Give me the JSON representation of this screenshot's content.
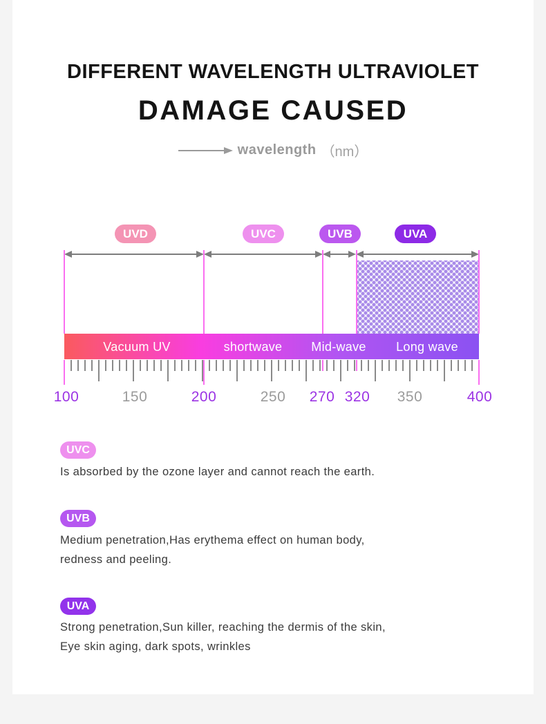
{
  "header": {
    "title_line1": "DIFFERENT WAVELENGTH ULTRAVIOLET",
    "title_line2": "DAMAGE CAUSED",
    "wavelength_label": "wavelength",
    "wavelength_unit": "（nm）"
  },
  "colors": {
    "page_bg": "#f4f4f4",
    "card_bg": "#ffffff",
    "uvd_badge": "#f494b4",
    "uvc_badge": "#ee90ee",
    "uvb_badge": "#bb58ef",
    "uva_badge": "#8d2ae6",
    "uvb_badge_bottom": "#b557f0",
    "uva_badge_bottom": "#9233eb",
    "bar_gradient": [
      "#fa5a5f",
      "#f93de0",
      "#b155f2",
      "#8b52f2"
    ],
    "pink_guide_line": "#fa6ff0",
    "arrow_gray": "#7d7d7d",
    "tick_gray": "#8a8a8a",
    "number_purple": "#9c34e4",
    "number_gray": "#9b9b9b",
    "dot_pattern": "#a98be9"
  },
  "spectrum": {
    "bands": [
      {
        "label": "UVD",
        "range_nm": "100-200"
      },
      {
        "label": "UVC",
        "range_nm": "200-270"
      },
      {
        "label": "UVB",
        "range_nm": "270-320"
      },
      {
        "label": "UVA",
        "range_nm": "320-400"
      }
    ],
    "bar_segments": [
      {
        "label": "Vacuum UV"
      },
      {
        "label": "shortwave"
      },
      {
        "label": "Mid-wave"
      },
      {
        "label": "Long wave"
      }
    ],
    "scale_ticks": [
      {
        "label": "100",
        "emphasis": true
      },
      {
        "label": "150",
        "emphasis": false
      },
      {
        "label": "200",
        "emphasis": true
      },
      {
        "label": "250",
        "emphasis": false
      },
      {
        "label": "270",
        "emphasis": true
      },
      {
        "label": "320",
        "emphasis": true
      },
      {
        "label": "350",
        "emphasis": false
      },
      {
        "label": "400",
        "emphasis": true
      }
    ]
  },
  "sections": [
    {
      "badge": "UVC",
      "lines": [
        "Is absorbed by the ozone layer and cannot reach the earth."
      ]
    },
    {
      "badge": "UVB",
      "lines": [
        "Medium penetration,Has erythema effect on human body,",
        "redness and peeling."
      ]
    },
    {
      "badge": "UVA",
      "lines": [
        "Strong penetration,Sun killer, reaching the dermis of the skin,",
        "Eye skin aging, dark spots, wrinkles"
      ]
    }
  ]
}
